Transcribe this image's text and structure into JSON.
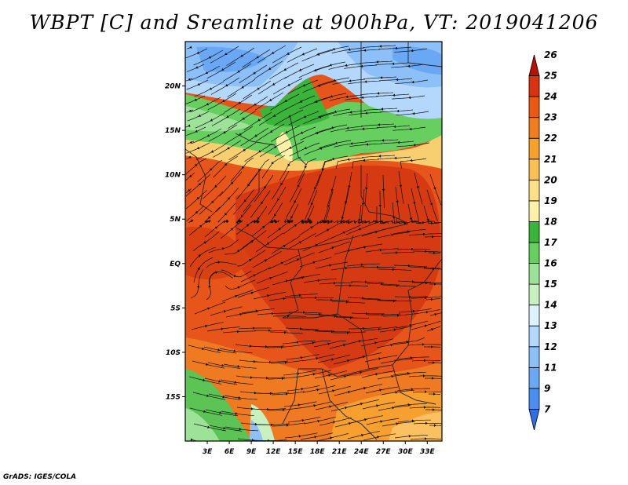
{
  "title": "WBPT [C] and Sreamline at 900hPa, VT: 2019041206",
  "credit": "GrADS: IGES/COLA",
  "map": {
    "lon_range": [
      0,
      35
    ],
    "lat_range": [
      -20,
      25
    ],
    "x_ticks": [
      {
        "lon": 3,
        "label": "3E"
      },
      {
        "lon": 6,
        "label": "6E"
      },
      {
        "lon": 9,
        "label": "9E"
      },
      {
        "lon": 12,
        "label": "12E"
      },
      {
        "lon": 15,
        "label": "15E"
      },
      {
        "lon": 18,
        "label": "18E"
      },
      {
        "lon": 21,
        "label": "21E"
      },
      {
        "lon": 24,
        "label": "24E"
      },
      {
        "lon": 27,
        "label": "27E"
      },
      {
        "lon": 30,
        "label": "30E"
      },
      {
        "lon": 33,
        "label": "33E"
      }
    ],
    "y_ticks": [
      {
        "lat": 20,
        "label": "20N"
      },
      {
        "lat": 15,
        "label": "15N"
      },
      {
        "lat": 10,
        "label": "10N"
      },
      {
        "lat": 5,
        "label": "5N"
      },
      {
        "lat": 0,
        "label": "EQ"
      },
      {
        "lat": -5,
        "label": "5S"
      },
      {
        "lat": -10,
        "label": "10S"
      },
      {
        "lat": -15,
        "label": "15S"
      }
    ]
  },
  "colorbar": {
    "levels": [
      "7",
      "9",
      "11",
      "12",
      "13",
      "14",
      "15",
      "16",
      "17",
      "18",
      "19",
      "20",
      "21",
      "22",
      "23",
      "24",
      "25",
      "26"
    ],
    "colors": [
      "#2f6fe0",
      "#4a8ef0",
      "#6aa8f5",
      "#8dc0f8",
      "#b3d8fb",
      "#dcf2fc",
      "#c8f0c0",
      "#9ee29a",
      "#66cf5f",
      "#3bb43a",
      "#fff2a8",
      "#fde08a",
      "#fbbf55",
      "#f6a12b",
      "#f07d1f",
      "#e85a14",
      "#d83210",
      "#b81206"
    ]
  }
}
